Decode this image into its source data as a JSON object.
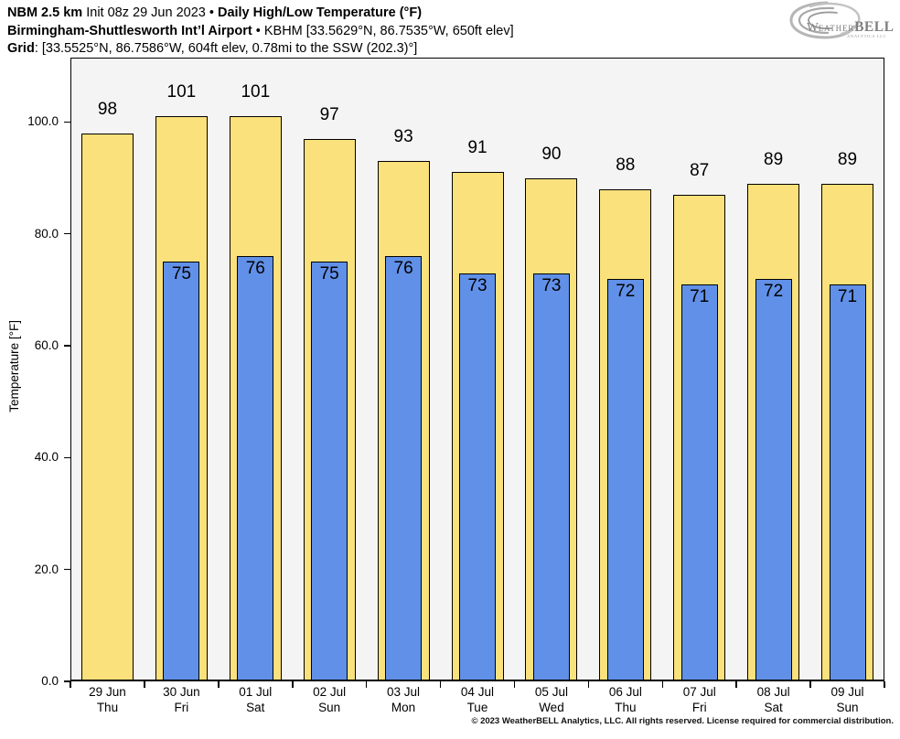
{
  "header": {
    "line1_bold1": "NBM 2.5 km",
    "line1_regular": " Init 08z 29 Jun 2023 • ",
    "line1_bold2": "Daily High/Low Temperature (°F)",
    "line2_bold": "Birmingham-Shuttlesworth Int’l Airport",
    "line2_regular": " • KBHM [33.5629°N, 86.7535°W, 650ft elev]",
    "line3_bold": "Grid",
    "line3_regular": ": [33.5525°N, 86.7586°W, 604ft elev, 0.78mi to the SSW (202.3)°]"
  },
  "logo": {
    "w": "W",
    "eather": "EATHER",
    "bell": "BELL",
    "subtext": "ANALYTICS LLC"
  },
  "chart_data": {
    "type": "bar",
    "title": "Daily High/Low Temperature (°F)",
    "xlabel": "",
    "ylabel": "Temperature [°F]",
    "ylim": [
      0,
      111.5
    ],
    "yticks": [
      0,
      20,
      40,
      60,
      80,
      100
    ],
    "ytick_labels": [
      "0.0",
      "20.0",
      "40.0",
      "60.0",
      "80.0",
      "100.0"
    ],
    "grid": false,
    "legend_position": "none",
    "categories": [
      "29 Jun",
      "30 Jun",
      "01 Jul",
      "02 Jul",
      "03 Jul",
      "04 Jul",
      "05 Jul",
      "06 Jul",
      "07 Jul",
      "08 Jul",
      "09 Jul"
    ],
    "weekdays": [
      "Thu",
      "Fri",
      "Sat",
      "Sun",
      "Mon",
      "Tue",
      "Wed",
      "Thu",
      "Fri",
      "Sat",
      "Sun"
    ],
    "series": [
      {
        "name": "Daily High",
        "color": "#FBE17B",
        "values": [
          98,
          101,
          101,
          97,
          93,
          91,
          90,
          88,
          87,
          89,
          89
        ]
      },
      {
        "name": "Daily Low",
        "color": "#6190E8",
        "values": [
          null,
          75,
          76,
          75,
          76,
          73,
          73,
          72,
          71,
          72,
          71
        ]
      }
    ]
  },
  "colors": {
    "high_bar": "#FBE17B",
    "low_bar": "#6190E8",
    "plot_background": "#F4F4F4",
    "bar_outline": "#000000",
    "logo_gray": "#9a9a9a"
  },
  "footer": "© 2023 WeatherBELL Analytics, LLC. All rights reserved. License required for commercial distribution."
}
